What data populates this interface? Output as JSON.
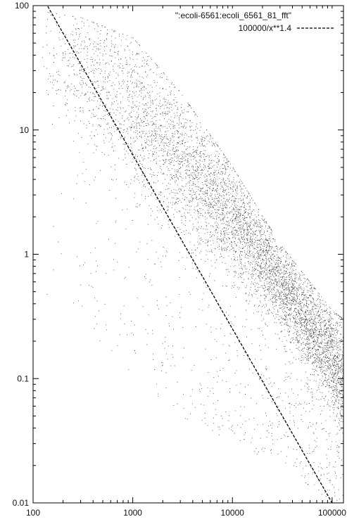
{
  "chart_data": {
    "type": "scatter",
    "x_scale": "log",
    "y_scale": "log",
    "xlim": [
      100,
      130000
    ],
    "ylim": [
      0.01,
      100
    ],
    "x_ticks": [
      {
        "value": 100,
        "label": "100"
      },
      {
        "value": 1000,
        "label": "1000"
      },
      {
        "value": 10000,
        "label": "10000"
      },
      {
        "value": 100000,
        "label": "100000"
      }
    ],
    "y_ticks": [
      {
        "value": 0.01,
        "label": "0.01"
      },
      {
        "value": 0.1,
        "label": "0.1"
      },
      {
        "value": 1,
        "label": "1"
      },
      {
        "value": 10,
        "label": "10"
      },
      {
        "value": 100,
        "label": "100"
      }
    ],
    "grid": false,
    "legend_position": "top-right",
    "series": [
      {
        "name": "\":ecoli-6561:ecoli_6561_81_fft\"",
        "style": "points",
        "color": "#000000",
        "approx_density_envelope": {
          "x": [
            120,
            300,
            1000,
            3000,
            10000,
            30000,
            100000,
            130000
          ],
          "y_upper": [
            90,
            80,
            55,
            20,
            5,
            1.2,
            0.35,
            0.3
          ],
          "y_core": [
            40,
            30,
            15,
            6,
            2,
            0.6,
            0.15,
            0.1
          ],
          "y_lower": [
            0.5,
            0.3,
            0.1,
            0.05,
            0.03,
            0.02,
            0.01,
            0.01
          ]
        }
      },
      {
        "name": "100000/x**1.4",
        "style": "dashed-line",
        "color": "#000000",
        "formula": "100000/x**1.4"
      }
    ]
  }
}
